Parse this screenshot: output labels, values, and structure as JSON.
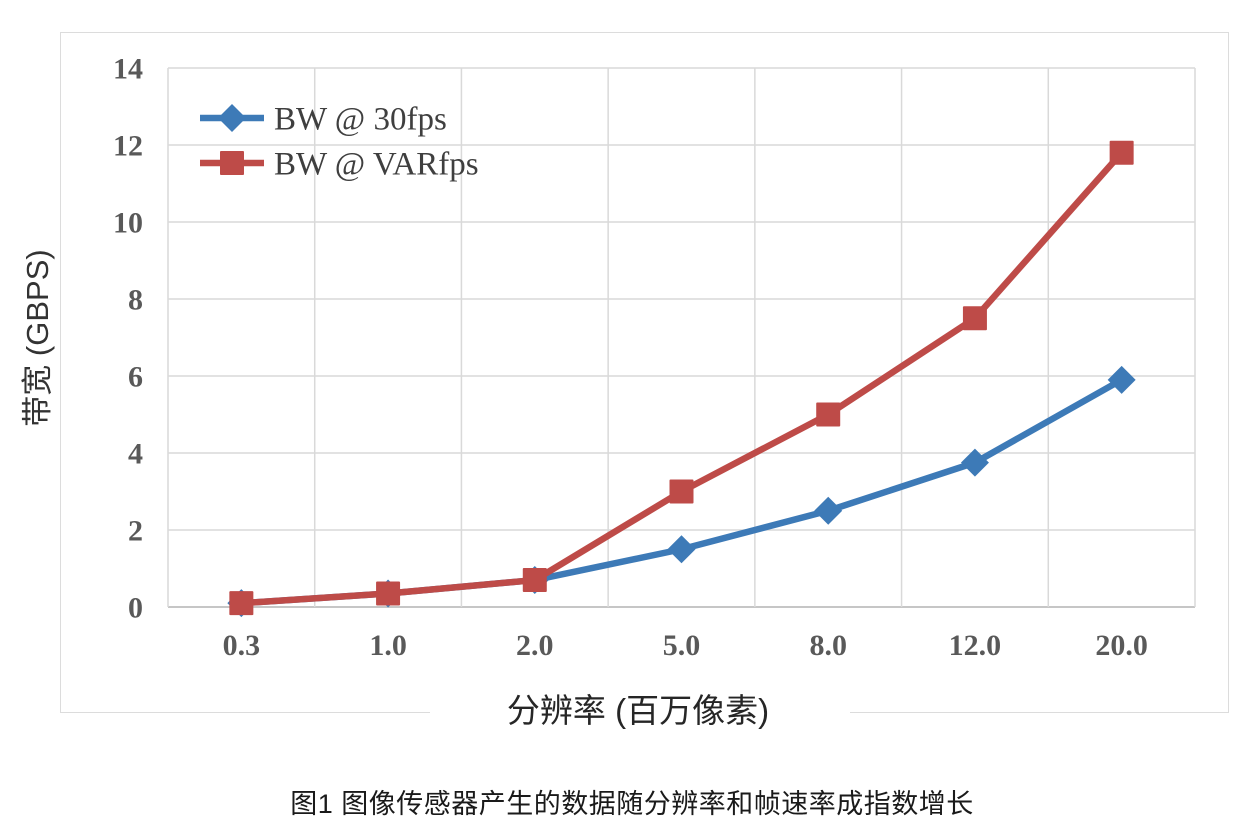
{
  "caption": "图1 图像传感器产生的数据随分辨率和帧速率成指数增长",
  "chart_data": {
    "type": "line",
    "title": "",
    "xlabel": "分辨率 (百万像素)",
    "ylabel": "带宽 (GBPS)",
    "categories": [
      "0.3",
      "1.0",
      "2.0",
      "5.0",
      "8.0",
      "12.0",
      "20.0"
    ],
    "y_ticks": [
      0,
      2,
      4,
      6,
      8,
      10,
      12,
      14
    ],
    "ylim": [
      0,
      14
    ],
    "grid": true,
    "legend_position": "top-left-inside",
    "series": [
      {
        "name": "BW @ 30fps",
        "marker": "diamond",
        "color": "#3d7ab7",
        "values": [
          0.1,
          0.35,
          0.7,
          1.5,
          2.5,
          3.75,
          5.9
        ]
      },
      {
        "name": "BW @ VARfps",
        "marker": "square",
        "color": "#be4b48",
        "values": [
          0.1,
          0.35,
          0.7,
          3.0,
          5.0,
          7.5,
          11.8
        ]
      }
    ],
    "colors": {
      "gridline": "#d9d9d9",
      "axis_line": "#c6c6c6",
      "chart_border": "#dcdcdc",
      "tick_label": "#595959",
      "legend_text": "#3f3f3f",
      "background": "#ffffff"
    }
  }
}
